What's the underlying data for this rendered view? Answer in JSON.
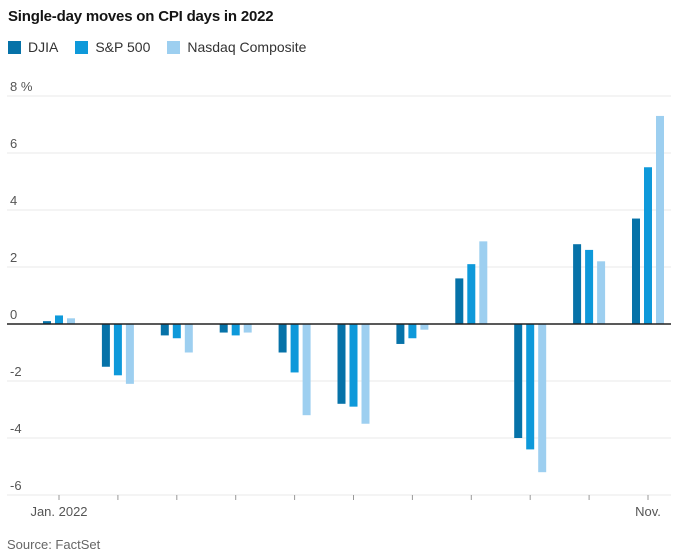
{
  "header": {
    "title": "Single-day moves on CPI days in 2022"
  },
  "source": "Source: FactSet",
  "colors": {
    "djia": "#0672a8",
    "sp500": "#0e99da",
    "nasdaq": "#9dcff0",
    "gridline": "#e9e9e9",
    "zero_line": "#222222",
    "axis_tick": "#999999",
    "axis_text": "#555555"
  },
  "chart_data": {
    "type": "bar",
    "title": "Single-day moves on CPI days in 2022",
    "categories": [
      "Jan. 2022",
      "",
      "",
      "",
      "",
      "",
      "",
      "",
      "",
      "",
      "Nov."
    ],
    "series": [
      {
        "name": "DJIA",
        "color": "#0672a8",
        "values": [
          0.1,
          -1.5,
          -0.4,
          -0.3,
          -1.0,
          -2.8,
          -0.7,
          1.6,
          -4.0,
          2.8,
          3.7
        ]
      },
      {
        "name": "S&P 500",
        "color": "#0e99da",
        "values": [
          0.3,
          -1.8,
          -0.5,
          -0.4,
          -1.7,
          -2.9,
          -0.5,
          2.1,
          -4.4,
          2.6,
          5.5
        ]
      },
      {
        "name": "Nasdaq Composite",
        "color": "#9dcff0",
        "values": [
          0.2,
          -2.1,
          -1.0,
          -0.3,
          -3.2,
          -3.5,
          -0.2,
          2.9,
          -5.2,
          2.2,
          7.3
        ]
      }
    ],
    "xlabel": "",
    "ylabel": "",
    "y_unit": "%",
    "y_ticks": [
      8,
      6,
      4,
      2,
      0,
      -2,
      -4,
      -6
    ],
    "y_tick_labels": [
      "8 %",
      "6",
      "4",
      "2",
      "0",
      "-2",
      "-4",
      "-6"
    ],
    "ylim": [
      -6.5,
      8
    ],
    "grid": true,
    "legend_position": "top-left"
  }
}
